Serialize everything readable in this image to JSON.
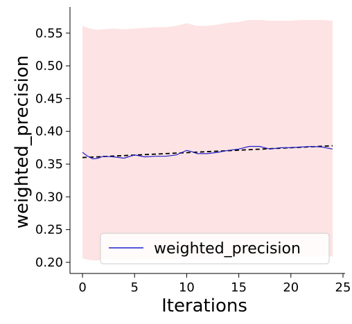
{
  "chart_data": {
    "type": "line",
    "xlabel": "Iterations",
    "ylabel": "weighted_precision",
    "xlim": [
      -1.2,
      25.2
    ],
    "ylim": [
      0.183,
      0.59
    ],
    "xticks": [
      0,
      5,
      10,
      15,
      20,
      25
    ],
    "yticks": [
      0.2,
      0.25,
      0.3,
      0.35,
      0.4,
      0.45,
      0.5,
      0.55
    ],
    "ytick_labels": [
      "0.20",
      "0.25",
      "0.30",
      "0.35",
      "0.40",
      "0.45",
      "0.50",
      "0.55"
    ],
    "grid": false,
    "legend": {
      "position": "bottom-right",
      "entries": [
        "weighted_precision"
      ]
    },
    "colors": {
      "line": "#1f1fcc",
      "band": "#fde3e3",
      "trend": "#000000"
    },
    "series": [
      {
        "name": "weighted_precision",
        "x": [
          0,
          0.5,
          1,
          1.5,
          2,
          3,
          4,
          5,
          6,
          7,
          8,
          9,
          10,
          10.5,
          11,
          12,
          13,
          14,
          15,
          16,
          17,
          18,
          19,
          20,
          21,
          22,
          23,
          24
        ],
        "y": [
          0.368,
          0.362,
          0.358,
          0.359,
          0.362,
          0.361,
          0.359,
          0.364,
          0.361,
          0.362,
          0.362,
          0.364,
          0.371,
          0.369,
          0.366,
          0.366,
          0.368,
          0.371,
          0.373,
          0.377,
          0.377,
          0.373,
          0.375,
          0.375,
          0.376,
          0.377,
          0.376,
          0.373
        ],
        "band_upper": [
          0.561,
          0.558,
          0.556,
          0.555,
          0.556,
          0.557,
          0.556,
          0.557,
          0.558,
          0.559,
          0.559,
          0.561,
          0.565,
          0.563,
          0.561,
          0.561,
          0.563,
          0.566,
          0.567,
          0.57,
          0.57,
          0.569,
          0.569,
          0.569,
          0.57,
          0.57,
          0.57,
          0.569
        ],
        "band_lower": [
          0.206,
          0.204,
          0.203,
          0.203,
          0.204,
          0.204,
          0.203,
          0.204,
          0.204,
          0.204,
          0.205,
          0.205,
          0.207,
          0.206,
          0.206,
          0.206,
          0.207,
          0.207,
          0.208,
          0.209,
          0.209,
          0.209,
          0.209,
          0.209,
          0.209,
          0.209,
          0.209,
          0.209
        ]
      }
    ],
    "trend": {
      "x": [
        0,
        24
      ],
      "y": [
        0.36,
        0.378
      ]
    }
  }
}
